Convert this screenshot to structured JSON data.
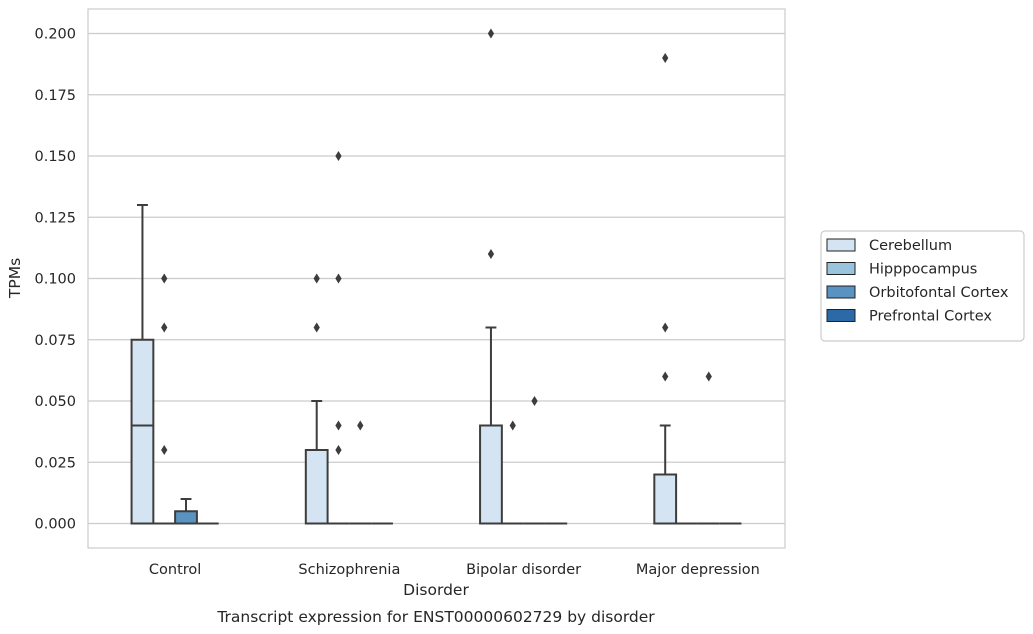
{
  "chart_data": {
    "type": "box",
    "title": "",
    "caption": "Transcript expression for ENST00000602729 by disorder",
    "xlabel": "Disorder",
    "ylabel": "TPMs",
    "ylim": [
      -0.01,
      0.21
    ],
    "yticks": [
      "0.000",
      "0.025",
      "0.050",
      "0.075",
      "0.100",
      "0.125",
      "0.150",
      "0.175",
      "0.200"
    ],
    "grid": "horizontal",
    "legend_position": "right",
    "categories": [
      "Control",
      "Schizophrenia",
      "Bipolar disorder",
      "Major depression"
    ],
    "series": [
      {
        "name": "Cerebellum",
        "color": "#d4e4f2",
        "boxes": [
          {
            "q1": 0,
            "median": 0.04,
            "q3": 0.075,
            "whisker_low": 0,
            "whisker_high": 0.13,
            "outliers": []
          },
          {
            "q1": 0,
            "median": 0,
            "q3": 0.03,
            "whisker_low": 0,
            "whisker_high": 0.05,
            "outliers": [
              0.08,
              0.1
            ]
          },
          {
            "q1": 0,
            "median": 0,
            "q3": 0.04,
            "whisker_low": 0,
            "whisker_high": 0.08,
            "outliers": [
              0.11,
              0.2
            ]
          },
          {
            "q1": 0,
            "median": 0,
            "q3": 0.02,
            "whisker_low": 0,
            "whisker_high": 0.04,
            "outliers": [
              0.06,
              0.08,
              0.19
            ]
          }
        ]
      },
      {
        "name": "Hipppocampus",
        "color": "#9ac4de",
        "boxes": [
          {
            "q1": 0,
            "median": 0,
            "q3": 0,
            "whisker_low": 0,
            "whisker_high": 0,
            "outliers": [
              0.03,
              0.08,
              0.1
            ]
          },
          {
            "q1": 0,
            "median": 0,
            "q3": 0,
            "whisker_low": 0,
            "whisker_high": 0,
            "outliers": [
              0.03,
              0.04,
              0.1,
              0.15
            ]
          },
          {
            "q1": 0,
            "median": 0,
            "q3": 0,
            "whisker_low": 0,
            "whisker_high": 0,
            "outliers": [
              0.04
            ]
          },
          {
            "q1": 0,
            "median": 0,
            "q3": 0,
            "whisker_low": 0,
            "whisker_high": 0,
            "outliers": []
          }
        ]
      },
      {
        "name": "Orbitofontal Cortex",
        "color": "#5a93c1",
        "boxes": [
          {
            "q1": 0,
            "median": 0,
            "q3": 0.005,
            "whisker_low": 0,
            "whisker_high": 0.01,
            "outliers": []
          },
          {
            "q1": 0,
            "median": 0,
            "q3": 0,
            "whisker_low": 0,
            "whisker_high": 0,
            "outliers": [
              0.04
            ]
          },
          {
            "q1": 0,
            "median": 0,
            "q3": 0,
            "whisker_low": 0,
            "whisker_high": 0,
            "outliers": [
              0.05
            ]
          },
          {
            "q1": 0,
            "median": 0,
            "q3": 0,
            "whisker_low": 0,
            "whisker_high": 0,
            "outliers": [
              0.06
            ]
          }
        ]
      },
      {
        "name": "Prefrontal Cortex",
        "color": "#2b6aa6",
        "boxes": [
          {
            "q1": 0,
            "median": 0,
            "q3": 0,
            "whisker_low": 0,
            "whisker_high": 0,
            "outliers": []
          },
          {
            "q1": 0,
            "median": 0,
            "q3": 0,
            "whisker_low": 0,
            "whisker_high": 0,
            "outliers": []
          },
          {
            "q1": 0,
            "median": 0,
            "q3": 0,
            "whisker_low": 0,
            "whisker_high": 0,
            "outliers": []
          },
          {
            "q1": 0,
            "median": 0,
            "q3": 0,
            "whisker_low": 0,
            "whisker_high": 0,
            "outliers": []
          }
        ]
      }
    ]
  }
}
